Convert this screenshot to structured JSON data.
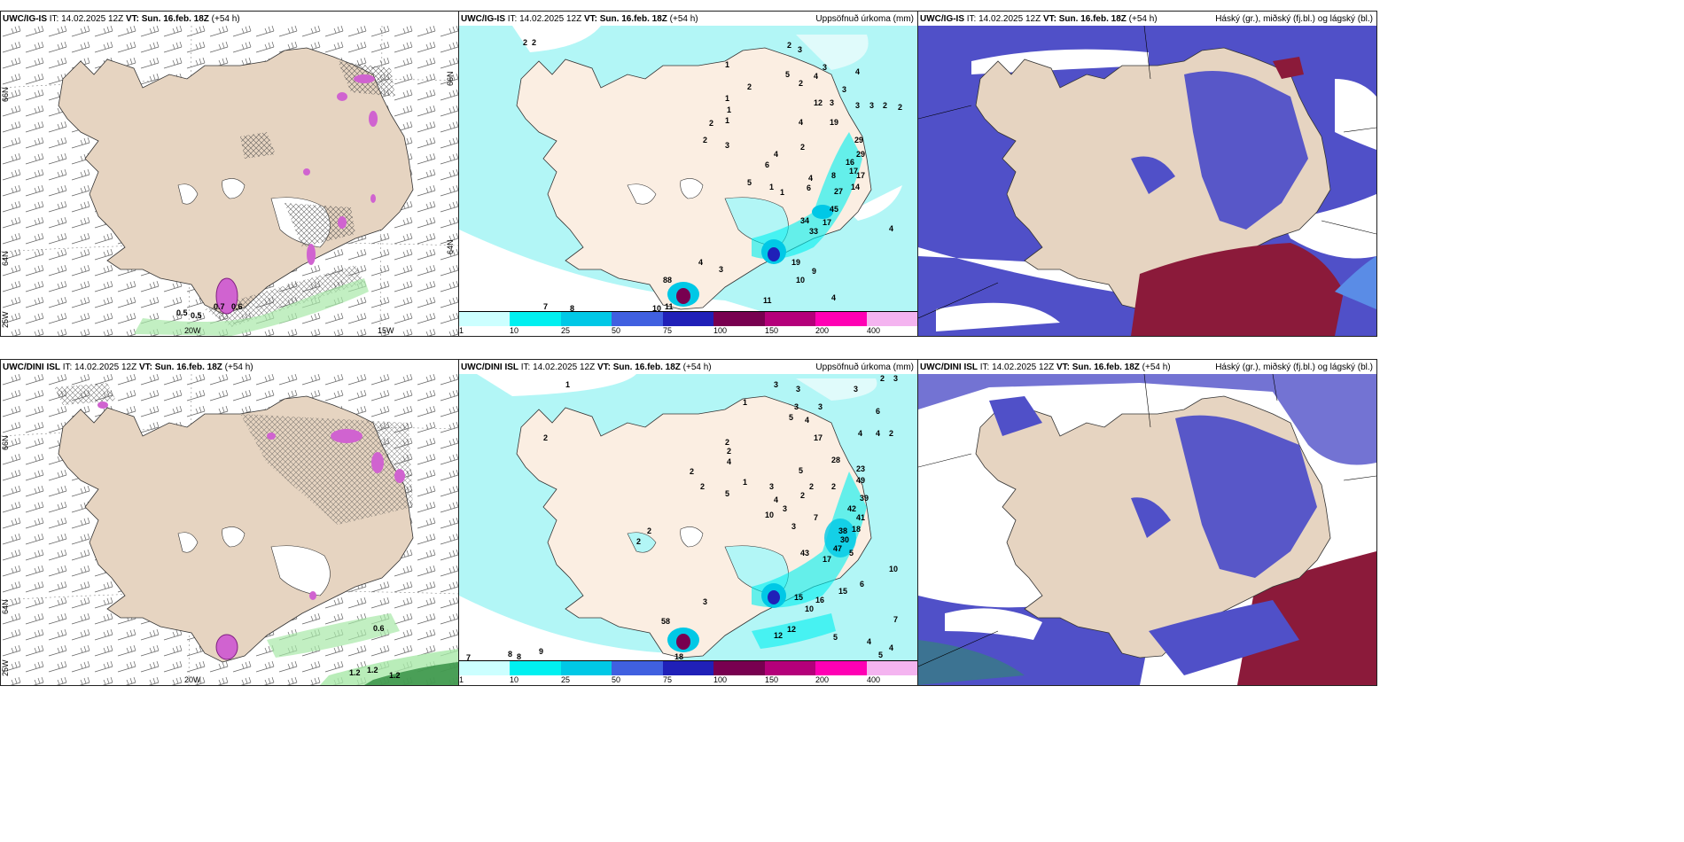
{
  "panels": [
    {
      "id": "p1",
      "model": "UWC/IG-IS",
      "it": "IT: 14.02.2025 12Z",
      "vt": "VT: Sun. 16.feb. 18Z",
      "lead": "(+54 h)",
      "right": "",
      "type": "wind"
    },
    {
      "id": "p2",
      "model": "UWC/IG-IS",
      "it": "IT: 14.02.2025 12Z",
      "vt": "VT: Sun. 16.feb. 18Z",
      "lead": "(+54 h)",
      "right": "Uppsöfnuð úrkoma (mm)",
      "type": "precip"
    },
    {
      "id": "p3",
      "model": "UWC/IG-IS",
      "it": "IT: 14.02.2025 12Z",
      "vt": "VT: Sun. 16.feb. 18Z",
      "lead": "(+54 h)",
      "right": "Háský (gr.), miðský (fj.bl.) og lágský (bl.)",
      "type": "cloud"
    },
    {
      "id": "p4",
      "model": "UWC/DINI ISL",
      "it": "IT: 14.02.2025 12Z",
      "vt": "VT: Sun. 16.feb. 18Z",
      "lead": "(+54 h)",
      "right": "",
      "type": "wind"
    },
    {
      "id": "p5",
      "model": "UWC/DINI ISL",
      "it": "IT: 14.02.2025 12Z",
      "vt": "VT: Sun. 16.feb. 18Z",
      "lead": "(+54 h)",
      "right": "Uppsöfnuð úrkoma (mm)",
      "type": "precip"
    },
    {
      "id": "p6",
      "model": "UWC/DINI ISL",
      "it": "IT: 14.02.2025 12Z",
      "vt": "VT: Sun. 16.feb. 18Z",
      "lead": "(+54 h)",
      "right": "Háský (gr.), miðský (fj.bl.) og lágský (bl.)",
      "type": "cloud"
    }
  ],
  "wind_map": {
    "lat_labels": [
      "66N",
      "64N",
      "25W"
    ],
    "lat_labels_right": [
      "66N",
      "64N"
    ],
    "lon_labels": [
      "20W",
      "15W"
    ],
    "lon_labels_bottom": [
      "20W"
    ],
    "values_p1": [
      "0.7",
      "0.6",
      "0.5",
      "0.5"
    ],
    "values_p4": [
      "0.6",
      "1.2",
      "1.2",
      "1.2"
    ]
  },
  "precip_colorbar": {
    "ticks": [
      "1",
      "10",
      "25",
      "50",
      "75",
      "100",
      "150",
      "200",
      "400"
    ],
    "colors": [
      "#ccffff",
      "#00f0f0",
      "#00c8e6",
      "#4060e0",
      "#2020b8",
      "#780050",
      "#b4007a",
      "#ff00b4",
      "#f4b4f0"
    ]
  },
  "precip_numbers_p2": [
    "2",
    "2",
    "2",
    "1",
    "2",
    "3",
    "5",
    "2",
    "4",
    "3",
    "4",
    "3",
    "3",
    "2",
    "12",
    "3",
    "3",
    "2",
    "1",
    "1",
    "1",
    "2",
    "2",
    "3",
    "4",
    "19",
    "29",
    "29",
    "16",
    "17",
    "17",
    "14",
    "27",
    "45",
    "34",
    "2",
    "6",
    "4",
    "8",
    "1",
    "5",
    "6",
    "1",
    "4",
    "33",
    "17",
    "4",
    "19",
    "9",
    "10",
    "4",
    "11",
    "4",
    "3",
    "88",
    "7",
    "8",
    "10",
    "11"
  ],
  "precip_numbers_p5": [
    "1",
    "1",
    "3",
    "3",
    "3",
    "2",
    "3",
    "3",
    "5",
    "4",
    "3",
    "6",
    "17",
    "4",
    "4",
    "2",
    "2",
    "2",
    "4",
    "5",
    "28",
    "23",
    "49",
    "39",
    "42",
    "41",
    "18",
    "1",
    "2",
    "2",
    "5",
    "3",
    "10",
    "7",
    "3",
    "4",
    "2",
    "2",
    "2",
    "3",
    "38",
    "30",
    "47",
    "43",
    "17",
    "5",
    "10",
    "6",
    "15",
    "16",
    "15",
    "10",
    "12",
    "12",
    "7",
    "5",
    "4",
    "4",
    "5",
    "18",
    "58",
    "3",
    "7",
    "8",
    "8",
    "9",
    "2",
    "2",
    "2"
  ],
  "colors": {
    "land": "#e6d4c1",
    "land_precip": "#fbeee2",
    "wind_green": "#a8e8a8",
    "wind_dkgreen": "#2e8b3e",
    "pink": "#d063d0",
    "cloud_low": "#5050c8",
    "cloud_mid": "#5a8ce6",
    "cloud_high": "#8b1a3a",
    "sea_cyan": "#b2f6f6",
    "water": "#ffffff"
  }
}
